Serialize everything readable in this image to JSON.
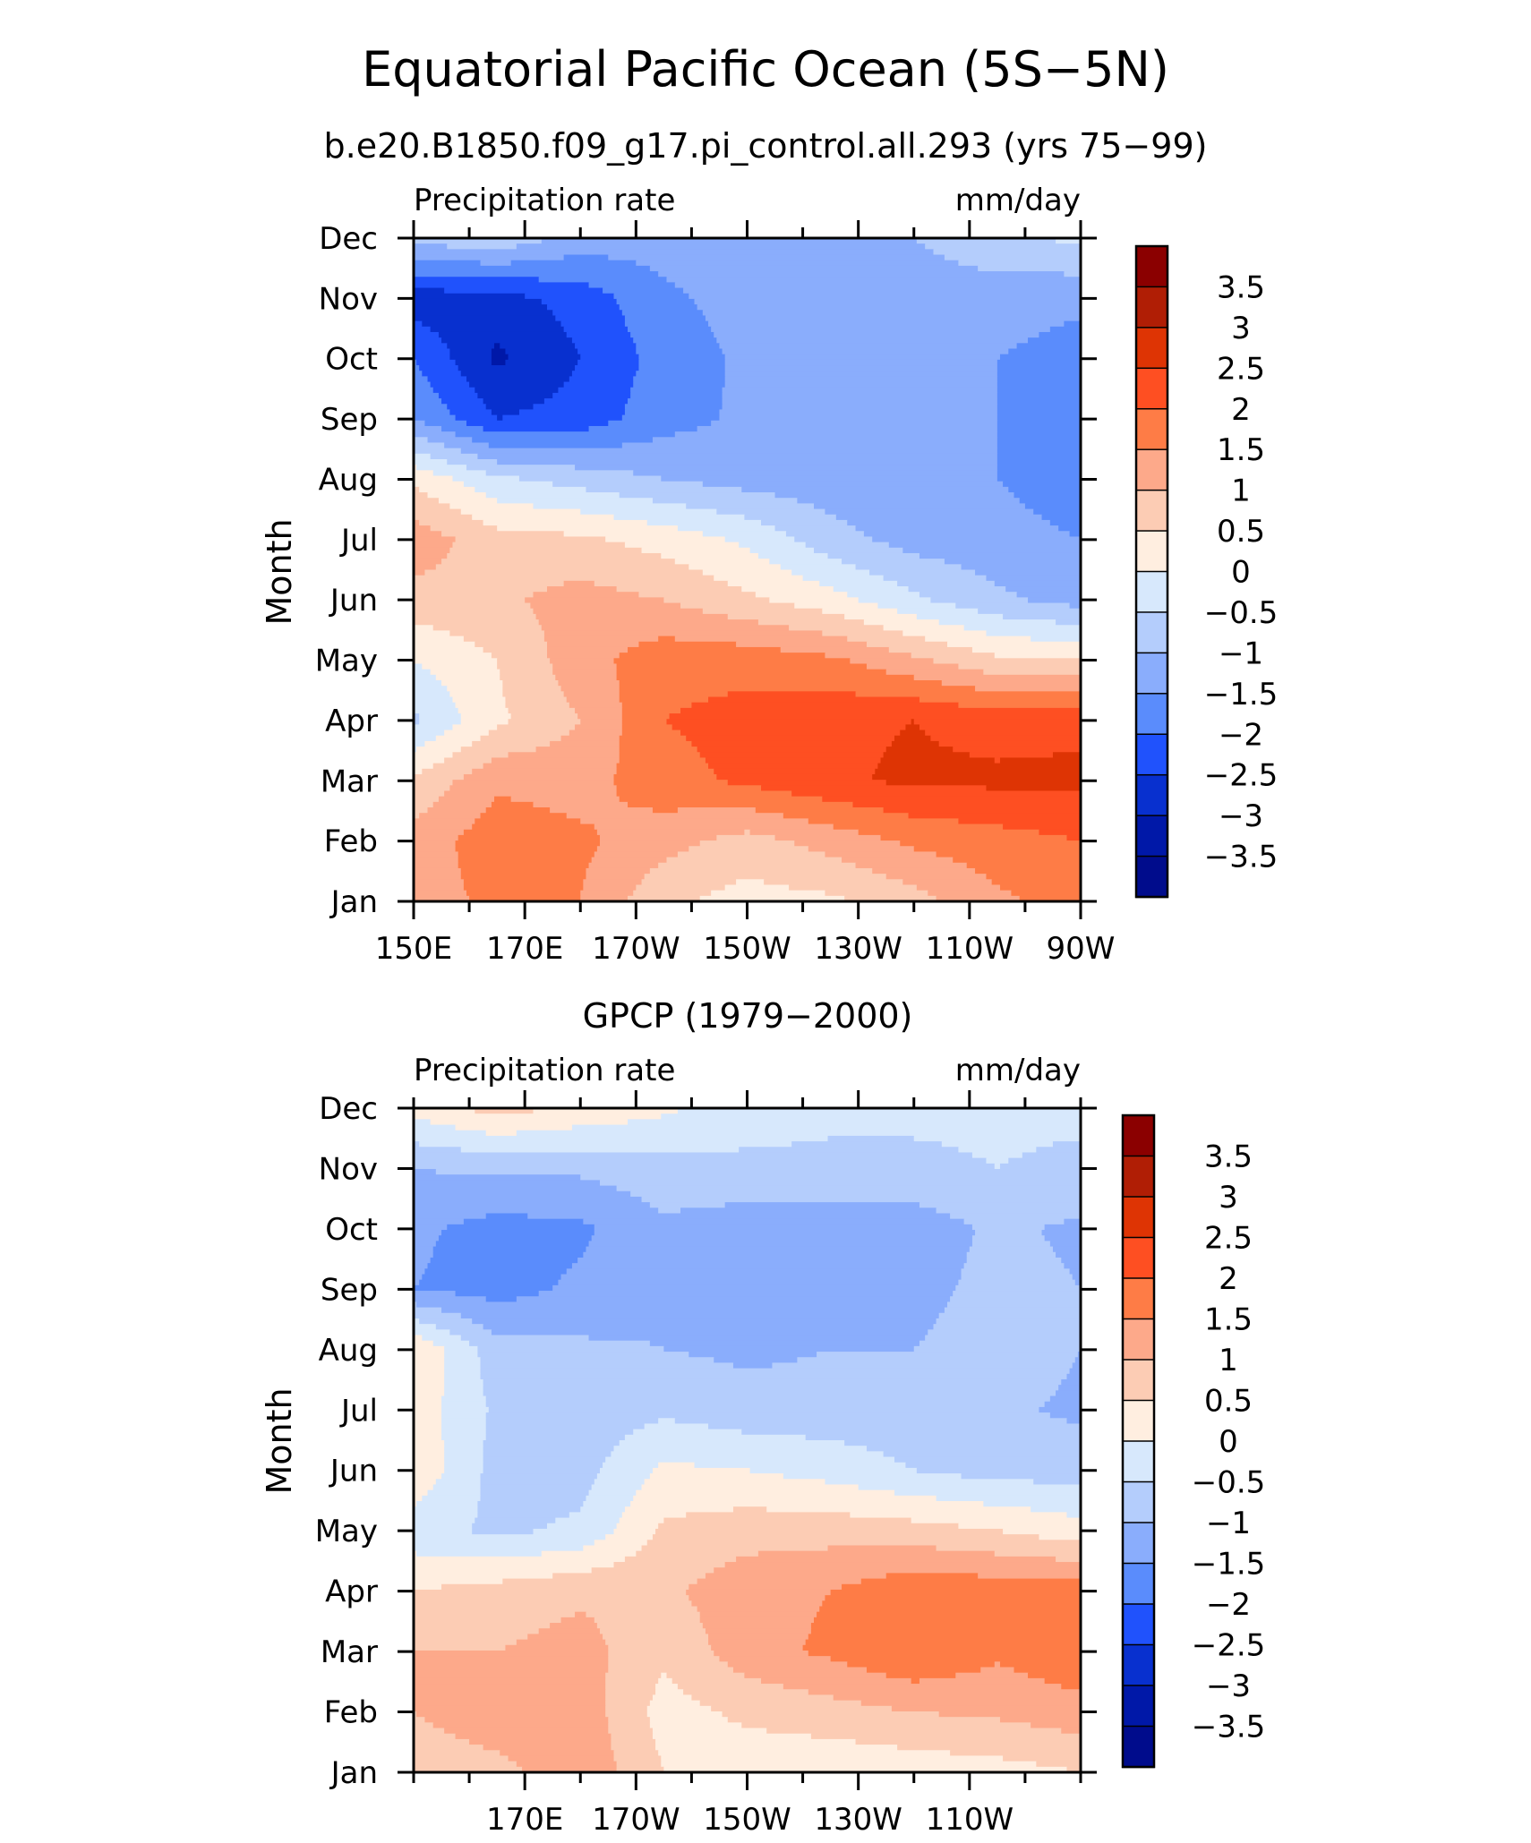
{
  "figure": {
    "title": "Equatorial Pacific Ocean (5S−5N)"
  },
  "colorbar": {
    "labels": [
      "3.5",
      "3",
      "2.5",
      "2",
      "1.5",
      "1",
      "0.5",
      "0",
      "−0.5",
      "−1",
      "−1.5",
      "−2",
      "−2.5",
      "−3",
      "−3.5"
    ],
    "colors": [
      "#8b0000",
      "#b01e05",
      "#de3404",
      "#fe4f22",
      "#fe7c46",
      "#fda98a",
      "#fcccb4",
      "#ffeee0",
      "#d7e8fc",
      "#b4cdfc",
      "#8aadfc",
      "#5a8cfc",
      "#2052fc",
      "#0830cf",
      "#0018a8",
      "#000c8c"
    ]
  },
  "chart_data": [
    {
      "type": "heatmap",
      "title": "b.e20.B1850.f09_g17.pi_control.all.293 (yrs 75−99)",
      "left_label": "Precipitation rate",
      "right_label": "mm/day",
      "ylabel": "Month",
      "x_ticks": [
        "150E",
        "170E",
        "170W",
        "150W",
        "130W",
        "110W",
        "90W"
      ],
      "y_ticks": [
        "Jan",
        "Feb",
        "Mar",
        "Apr",
        "May",
        "Jun",
        "Jul",
        "Aug",
        "Sep",
        "Oct",
        "Nov",
        "Dec"
      ],
      "x_range": [
        150,
        270
      ],
      "columns_lon": [
        150,
        165,
        180,
        195,
        210,
        225,
        240,
        255,
        270
      ],
      "rows": [
        [
          1.3,
          1.6,
          1.5,
          0.6,
          0.3,
          0.4,
          0.8,
          1.4,
          1.7
        ],
        [
          1.2,
          1.8,
          1.6,
          1.2,
          0.8,
          1.2,
          1.6,
          1.8,
          2.0
        ],
        [
          0.6,
          1.4,
          1.3,
          1.8,
          2.1,
          2.4,
          2.6,
          2.6,
          2.6
        ],
        [
          -0.6,
          0.4,
          1.0,
          2.0,
          2.2,
          2.4,
          2.5,
          2.3,
          2.4
        ],
        [
          0.0,
          0.5,
          1.3,
          1.8,
          1.8,
          1.6,
          1.1,
          0.6,
          0.5
        ],
        [
          0.8,
          0.9,
          1.2,
          1.0,
          0.6,
          0.2,
          -0.4,
          -0.9,
          -1.2
        ],
        [
          1.3,
          0.7,
          0.6,
          0.3,
          -0.1,
          -0.8,
          -1.2,
          -1.3,
          -1.5
        ],
        [
          0.4,
          -0.4,
          -0.7,
          -1.0,
          -1.2,
          -1.3,
          -1.4,
          -1.5,
          -1.8
        ],
        [
          -1.5,
          -2.5,
          -2.3,
          -1.7,
          -1.4,
          -1.4,
          -1.4,
          -1.5,
          -1.9
        ],
        [
          -2.0,
          -3.1,
          -2.5,
          -1.8,
          -1.4,
          -1.4,
          -1.4,
          -1.5,
          -1.7
        ],
        [
          -2.8,
          -2.7,
          -2.3,
          -1.6,
          -1.3,
          -1.3,
          -1.3,
          -1.3,
          -1.4
        ],
        [
          -0.8,
          -0.6,
          -1.2,
          -1.3,
          -1.2,
          -1.1,
          -1.0,
          -0.6,
          -0.4
        ]
      ]
    },
    {
      "type": "heatmap",
      "title": "GPCP (1979−2000)",
      "left_label": "Precipitation rate",
      "right_label": "mm/day",
      "ylabel": "Month",
      "x_ticks": [
        "170E",
        "170W",
        "150W",
        "130W",
        "110W"
      ],
      "y_ticks": [
        "Jan",
        "Feb",
        "Mar",
        "Apr",
        "May",
        "Jun",
        "Jul",
        "Aug",
        "Sep",
        "Oct",
        "Nov",
        "Dec"
      ],
      "x_range": [
        150,
        270
      ],
      "columns_lon": [
        150,
        165,
        180,
        195,
        210,
        225,
        240,
        255,
        270
      ],
      "rows": [
        [
          0.6,
          0.8,
          1.4,
          0.5,
          0.2,
          0.1,
          0.2,
          0.3,
          0.5
        ],
        [
          1.0,
          1.4,
          1.3,
          0.3,
          0.6,
          0.8,
          1.0,
          1.1,
          1.3
        ],
        [
          1.0,
          1.0,
          1.2,
          0.6,
          1.3,
          1.6,
          2.0,
          1.6,
          1.9
        ],
        [
          0.5,
          0.7,
          0.9,
          0.9,
          1.3,
          1.5,
          1.9,
          1.8,
          1.8
        ],
        [
          -0.3,
          -0.6,
          -0.4,
          0.6,
          0.8,
          0.8,
          0.7,
          0.5,
          0.2
        ],
        [
          0.4,
          -0.7,
          -0.7,
          0.1,
          0.0,
          -0.2,
          -0.5,
          -0.7,
          -0.7
        ],
        [
          0.3,
          -0.6,
          -0.8,
          -0.6,
          -0.8,
          -0.8,
          -0.8,
          -0.9,
          -1.1
        ],
        [
          0.5,
          -0.8,
          -0.9,
          -1.0,
          -1.1,
          -1.0,
          -1.0,
          -0.7,
          -1.0
        ],
        [
          -1.5,
          -1.7,
          -1.4,
          -1.1,
          -1.2,
          -1.3,
          -1.2,
          -0.8,
          -1.0
        ],
        [
          -1.4,
          -1.7,
          -1.6,
          -1.1,
          -1.3,
          -1.3,
          -1.3,
          -0.9,
          -1.1
        ],
        [
          -1.0,
          -0.9,
          -0.9,
          -0.7,
          -0.6,
          -0.6,
          -0.6,
          -0.5,
          -0.6
        ],
        [
          0.2,
          0.7,
          0.4,
          0.1,
          -0.3,
          -0.4,
          -0.4,
          -0.4,
          -0.4
        ]
      ]
    }
  ]
}
